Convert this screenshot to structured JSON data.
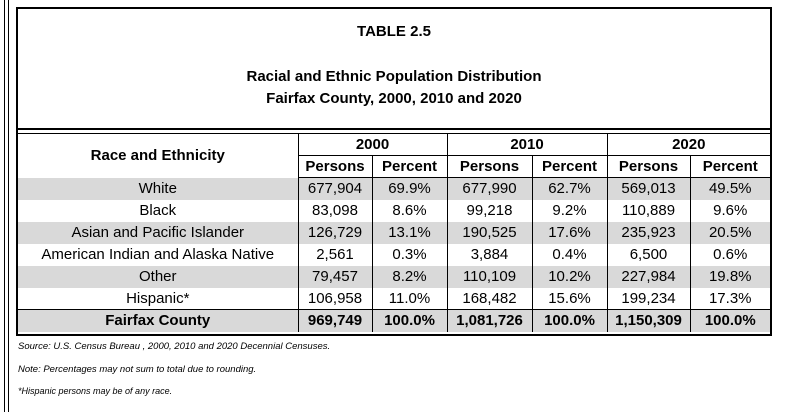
{
  "title": {
    "table_number": "TABLE 2.5",
    "line1": "Racial and Ethnic Population Distribution",
    "line2": "Fairfax County, 2000, 2010 and 2020"
  },
  "header": {
    "race_label": "Race and Ethnicity",
    "years": [
      "2000",
      "2010",
      "2020"
    ],
    "persons_label": "Persons",
    "percent_label": "Percent"
  },
  "rows": [
    {
      "label": "White",
      "values": [
        "677,904",
        "69.9%",
        "677,990",
        "62.7%",
        "569,013",
        "49.5%"
      ]
    },
    {
      "label": "Black",
      "values": [
        "83,098",
        "8.6%",
        "99,218",
        "9.2%",
        "110,889",
        "9.6%"
      ]
    },
    {
      "label": "Asian and Pacific Islander",
      "values": [
        "126,729",
        "13.1%",
        "190,525",
        "17.6%",
        "235,923",
        "20.5%"
      ]
    },
    {
      "label": "American Indian and Alaska Native",
      "values": [
        "2,561",
        "0.3%",
        "3,884",
        "0.4%",
        "6,500",
        "0.6%"
      ]
    },
    {
      "label": "Other",
      "values": [
        "79,457",
        "8.2%",
        "110,109",
        "10.2%",
        "227,984",
        "19.8%"
      ]
    },
    {
      "label": "Hispanic*",
      "values": [
        "106,958",
        "11.0%",
        "168,482",
        "15.6%",
        "199,234",
        "17.3%"
      ]
    }
  ],
  "total": {
    "label": "Fairfax County",
    "values": [
      "969,749",
      "100.0%",
      "1,081,726",
      "100.0%",
      "1,150,309",
      "100.0%"
    ]
  },
  "notes": {
    "source": "Source:  U.S. Census Bureau , 2000, 2010 and 2020 Decennial Censuses.",
    "rounding": "Note:  Percentages may not sum to total due to rounding.",
    "hispanic": "*Hispanic persons may be of any race."
  }
}
